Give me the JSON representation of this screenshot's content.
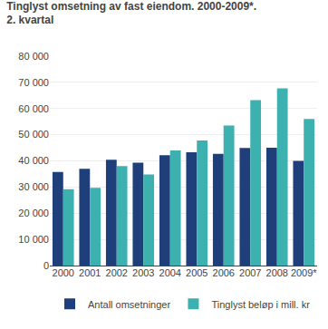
{
  "chart_data": {
    "type": "bar",
    "title": "Tinglyst omsetning av fast eiendom. 2000-2009*.",
    "subtitle": "2. kvartal",
    "categories": [
      "2000",
      "2001",
      "2002",
      "2003",
      "2004",
      "2005",
      "2006",
      "2007",
      "2008",
      "2009*"
    ],
    "series": [
      {
        "name": "Antall omsetninger",
        "color": "#1f3f7a",
        "values": [
          35800,
          37000,
          40400,
          39300,
          42200,
          43300,
          42700,
          44900,
          45000,
          40000
        ]
      },
      {
        "name": "Tinglyst beløp i mill. kr",
        "color": "#3db0b0",
        "values": [
          29200,
          29700,
          38000,
          34800,
          44000,
          47800,
          53500,
          63200,
          67700,
          56000
        ]
      }
    ],
    "ylim": [
      0,
      80000
    ],
    "yticks": [
      0,
      {
        "value": 10000,
        "label": "10 000"
      },
      {
        "value": 20000,
        "label": "20 000"
      },
      {
        "value": 30000,
        "label": "30 000"
      },
      {
        "value": 40000,
        "label": "40 000"
      },
      {
        "value": 50000,
        "label": "50 000"
      },
      {
        "value": 60000,
        "label": "60 000"
      },
      {
        "value": 70000,
        "label": "70 000"
      },
      {
        "value": 80000,
        "label": "80 000"
      }
    ],
    "grid": true,
    "legend": "bottom"
  }
}
